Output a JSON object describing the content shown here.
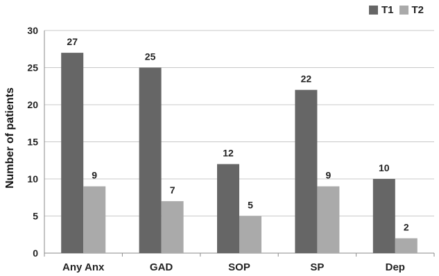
{
  "chart_data": {
    "type": "bar",
    "categories": [
      "Any Anx",
      "GAD",
      "SOP",
      "SP",
      "Dep"
    ],
    "series": [
      {
        "name": "T1",
        "values": [
          27,
          25,
          12,
          22,
          10
        ],
        "color": "#666666"
      },
      {
        "name": "T2",
        "values": [
          9,
          7,
          5,
          9,
          2
        ],
        "color": "#aaaaaa"
      }
    ],
    "title": "",
    "xlabel": "",
    "ylabel": "Number of patients",
    "ylim": [
      0,
      30
    ],
    "yticks": [
      0,
      5,
      10,
      15,
      20,
      25,
      30
    ],
    "grid": true,
    "legend": "top-right"
  }
}
